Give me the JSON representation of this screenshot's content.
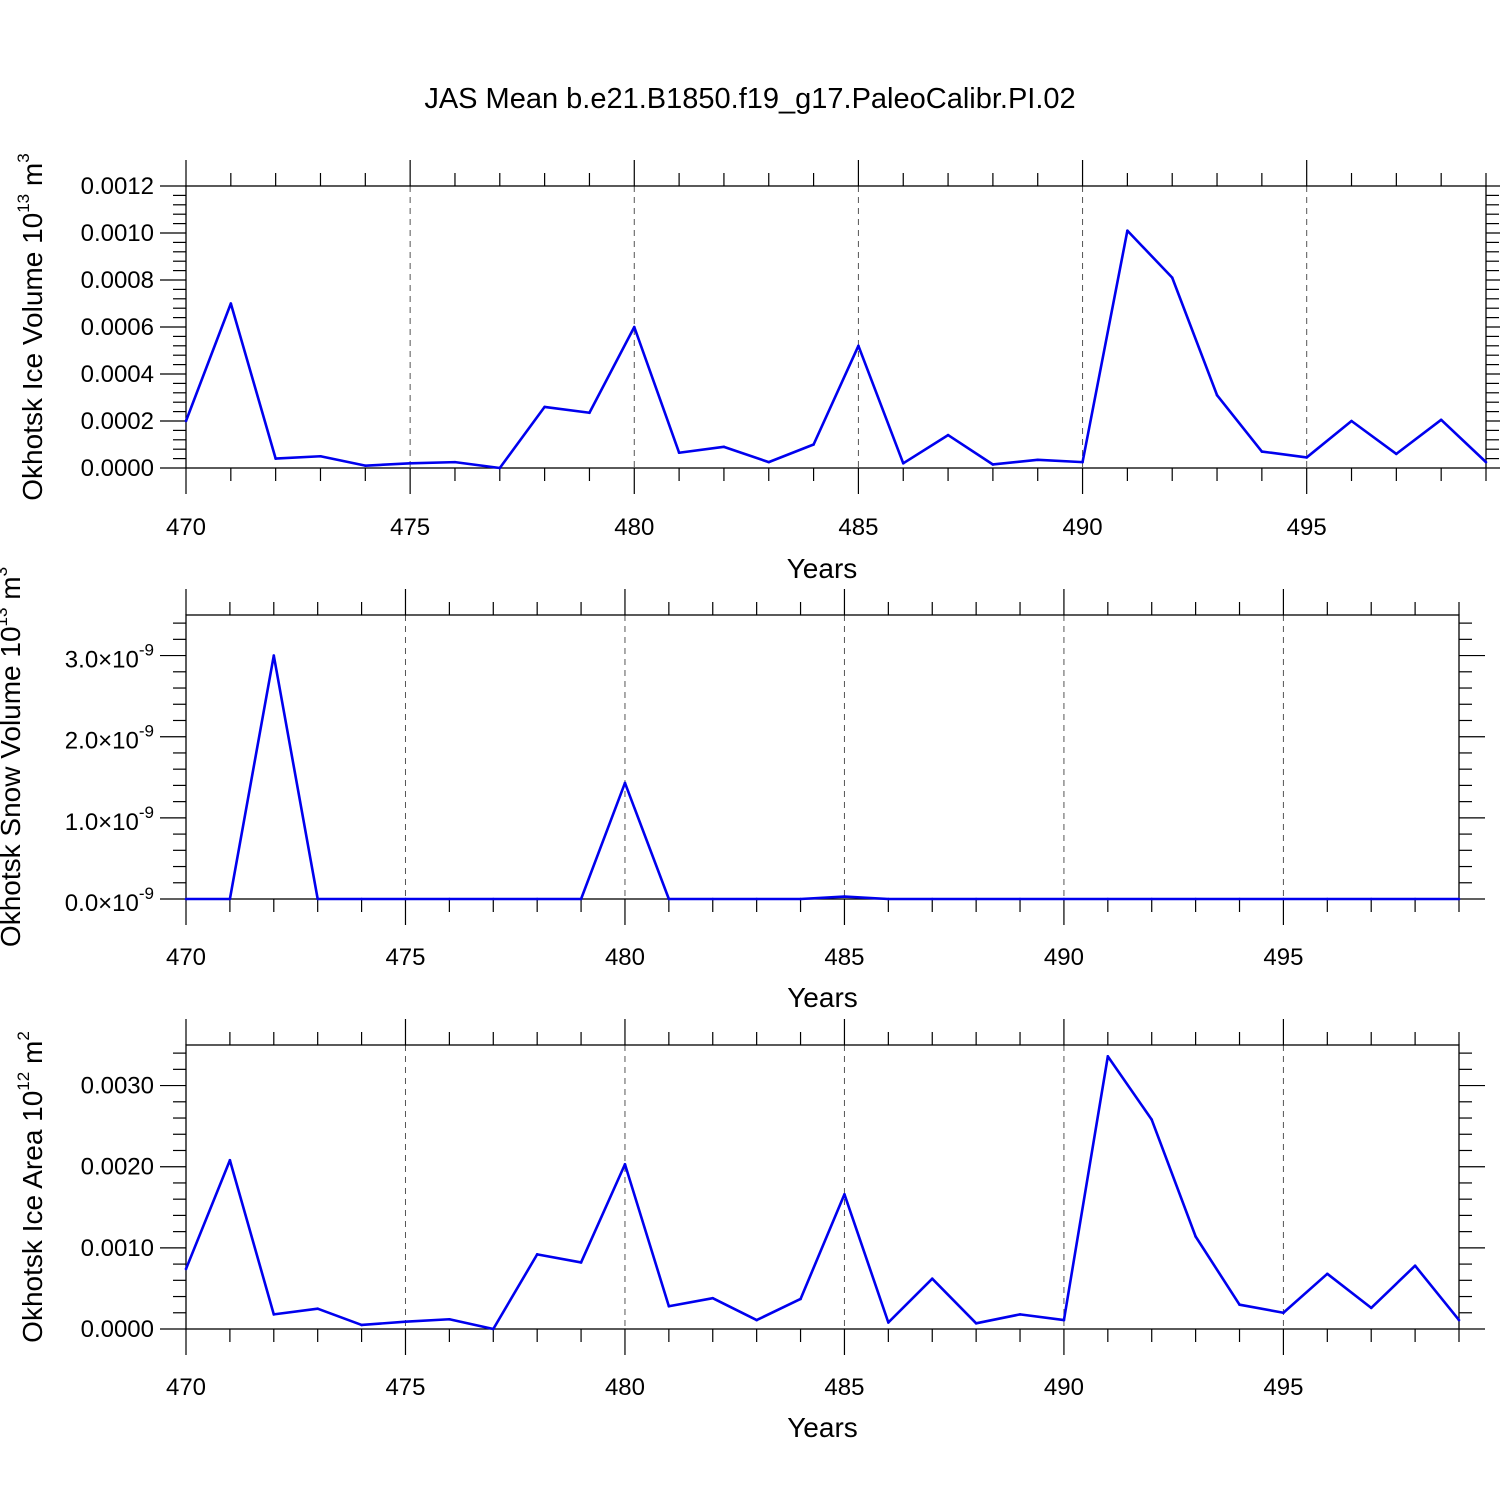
{
  "title": "JAS Mean b.e21.B1850.f19_g17.PaleoCalibr.PI.02",
  "line_color": "#0000ee",
  "chart_data": [
    {
      "type": "line",
      "title": "JAS Mean b.e21.B1850.f19_g17.PaleoCalibr.PI.02",
      "xlabel": "Years",
      "ylabel": "Okhotsk Ice Volume 10",
      "ylabel_exp": "13",
      "ylabel_unit": "m",
      "ylabel_unit_exp": "3",
      "xlim": [
        470,
        499
      ],
      "ylim": [
        0,
        0.0012
      ],
      "xticks": [
        470,
        475,
        480,
        485,
        490,
        495
      ],
      "xtick_labels": [
        "470",
        "475",
        "480",
        "485",
        "490",
        "495"
      ],
      "yticks": [
        0,
        0.0002,
        0.0004,
        0.0006,
        0.0008,
        0.001,
        0.0012
      ],
      "ytick_labels": [
        "0.0000",
        "0.0002",
        "0.0004",
        "0.0006",
        "0.0008",
        "0.0010",
        "0.0012"
      ],
      "grid": "dashed vertical at major x ticks",
      "x": [
        470,
        471,
        472,
        473,
        474,
        475,
        476,
        477,
        478,
        479,
        480,
        481,
        482,
        483,
        484,
        485,
        486,
        487,
        488,
        489,
        490,
        491,
        492,
        493,
        494,
        495,
        496,
        497,
        498,
        499
      ],
      "values": [
        0.0002,
        0.0007,
        4e-05,
        5e-05,
        1e-05,
        2e-05,
        2.5e-05,
        0.0,
        0.00026,
        0.000235,
        0.0006,
        6.5e-05,
        9e-05,
        2.5e-05,
        0.0001,
        0.00052,
        2e-05,
        0.00014,
        1.5e-05,
        3.5e-05,
        2.5e-05,
        0.00101,
        0.00081,
        0.00031,
        7e-05,
        4.5e-05,
        0.0002,
        6e-05,
        0.000205,
        2.5e-05
      ]
    },
    {
      "type": "line",
      "xlabel": "Years",
      "ylabel": "Okhotsk Snow Volume 10",
      "ylabel_exp": "13",
      "ylabel_unit": "m",
      "ylabel_unit_exp": "3",
      "xlim": [
        470,
        499
      ],
      "ylim": [
        0,
        3.5e-09
      ],
      "xticks": [
        470,
        475,
        480,
        485,
        490,
        495
      ],
      "xtick_labels": [
        "470",
        "475",
        "480",
        "485",
        "490",
        "495"
      ],
      "yticks": [
        0,
        1e-09,
        2e-09,
        3e-09
      ],
      "ytick_mantissas": [
        "0.0",
        "1.0",
        "2.0",
        "3.0"
      ],
      "ytick_base": "10",
      "ytick_exp": "-9",
      "grid": "dashed vertical at major x ticks",
      "x": [
        470,
        471,
        472,
        473,
        474,
        475,
        476,
        477,
        478,
        479,
        480,
        481,
        482,
        483,
        484,
        485,
        486,
        487,
        488,
        489,
        490,
        491,
        492,
        493,
        494,
        495,
        496,
        497,
        498,
        499
      ],
      "values": [
        0,
        0,
        3e-09,
        0,
        0,
        0,
        0,
        0,
        0,
        0,
        1.43e-09,
        0,
        0,
        0,
        0,
        3e-11,
        0,
        0,
        0,
        0,
        0,
        0,
        0,
        0,
        0,
        0,
        0,
        0,
        0,
        0
      ]
    },
    {
      "type": "line",
      "xlabel": "Years",
      "ylabel": "Okhotsk Ice Area 10",
      "ylabel_exp": "12",
      "ylabel_unit": "m",
      "ylabel_unit_exp": "2",
      "xlim": [
        470,
        499
      ],
      "ylim": [
        0,
        0.0035
      ],
      "xticks": [
        470,
        475,
        480,
        485,
        490,
        495
      ],
      "xtick_labels": [
        "470",
        "475",
        "480",
        "485",
        "490",
        "495"
      ],
      "yticks": [
        0,
        0.001,
        0.002,
        0.003
      ],
      "ytick_labels": [
        "0.0000",
        "0.0010",
        "0.0020",
        "0.0030"
      ],
      "grid": "dashed vertical at major x ticks",
      "x": [
        470,
        471,
        472,
        473,
        474,
        475,
        476,
        477,
        478,
        479,
        480,
        481,
        482,
        483,
        484,
        485,
        486,
        487,
        488,
        489,
        490,
        491,
        492,
        493,
        494,
        495,
        496,
        497,
        498,
        499
      ],
      "values": [
        0.00074,
        0.00208,
        0.00018,
        0.00025,
        5e-05,
        9e-05,
        0.00012,
        0.0,
        0.00092,
        0.00082,
        0.00203,
        0.00028,
        0.00038,
        0.00011,
        0.00037,
        0.00166,
        8e-05,
        0.00062,
        7e-05,
        0.00018,
        0.00011,
        0.00336,
        0.00258,
        0.00114,
        0.0003,
        0.0002,
        0.00068,
        0.00026,
        0.00078,
        0.00011
      ]
    }
  ]
}
